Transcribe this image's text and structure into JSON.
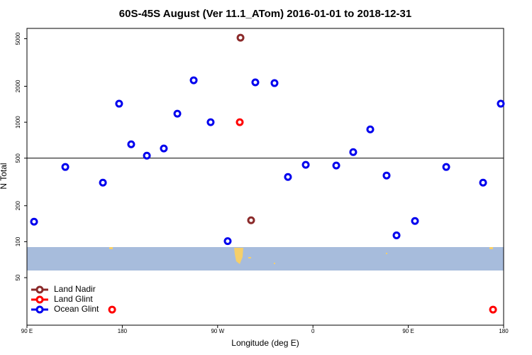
{
  "chart_data": {
    "type": "scatter",
    "title": "60S-45S August (Ver 11.1_ATom)   2016-01-01 to 2018-12-31",
    "x_label": "Longitude (deg E)",
    "y_label": "N Total",
    "xlim": [
      90,
      540
    ],
    "xticks": [
      {
        "value": 90,
        "label": "90 E"
      },
      180,
      {
        "value": 270,
        "label": "90 W"
      },
      {
        "value": 360,
        "label": "0"
      },
      {
        "value": 450,
        "label": "90 E"
      },
      {
        "value": 540,
        "label": "180"
      }
    ],
    "ylim": [
      20,
      6100
    ],
    "log_y": true,
    "yticks": [
      50,
      100,
      200,
      500,
      1000,
      2000,
      5000
    ],
    "reference_line": 500,
    "legend": "bottom-left",
    "series": [
      {
        "name": "Land Nadir",
        "color": "#8b2a2a",
        "x": [
          291.6,
          301.6
        ],
        "values": [
          5100,
          151
        ]
      },
      {
        "name": "Land Glint",
        "color": "#ff0000",
        "x": [
          290.9,
          170.4,
          530
        ],
        "values": [
          1000,
          27,
          27
        ]
      },
      {
        "name": "Ocean Glint",
        "color": "#0000ee",
        "x": [
          96.7,
          126.2,
          161.7,
          177,
          188.4,
          203.2,
          219.2,
          232,
          247.4,
          263.4,
          279.5,
          305.6,
          323.7,
          336.4,
          353.2,
          382,
          398,
          414.1,
          429.5,
          438.9,
          456.3,
          485.8,
          520.6,
          537.3
        ],
        "values": [
          147,
          422,
          312,
          1429,
          653,
          525,
          603,
          1179,
          2244,
          1000,
          101,
          2155,
          2125,
          348,
          440,
          434,
          562,
          871,
          358,
          113,
          149,
          422,
          312,
          1429
        ]
      }
    ]
  }
}
